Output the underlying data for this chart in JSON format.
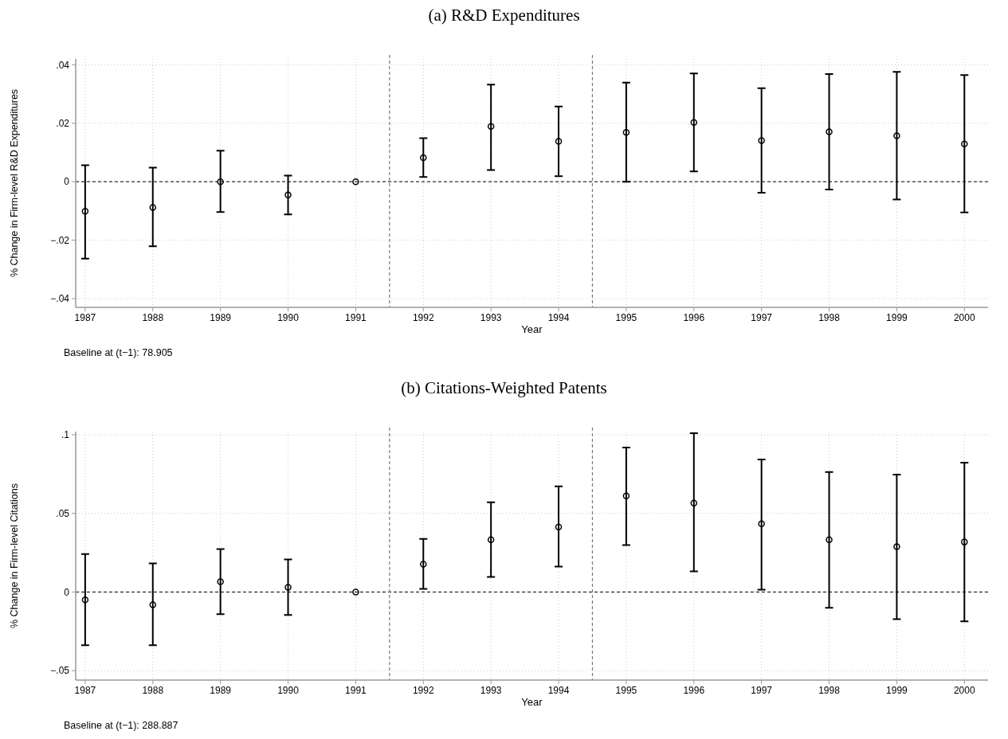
{
  "chart_data": [
    {
      "type": "scatter",
      "title": "(a) R&D Expenditures",
      "xlabel": "Year",
      "ylabel": "% Change in Firm-level R&D Expenditures",
      "annotations": [
        "Baseline at (t−1): 78.905"
      ],
      "x": [
        1987,
        1988,
        1989,
        1990,
        1991,
        1992,
        1993,
        1994,
        1995,
        1996,
        1997,
        1998,
        1999,
        2000
      ],
      "values": [
        -0.0101,
        -0.0088,
        0,
        -0.0045,
        0,
        0.0082,
        0.0189,
        0.0138,
        0.0169,
        0.0203,
        0.0141,
        0.0171,
        0.0157,
        0.0129
      ],
      "errors": [
        [
          -0.0263,
          0.0056
        ],
        [
          -0.0221,
          0.0048
        ],
        [
          -0.0104,
          0.0106
        ],
        [
          -0.0112,
          0.0021
        ],
        null,
        [
          0.0016,
          0.0149
        ],
        [
          0.004,
          0.0332
        ],
        [
          0.0019,
          0.0257
        ],
        [
          0,
          0.0339
        ],
        [
          0.0035,
          0.037
        ],
        [
          -0.0038,
          0.032
        ],
        [
          -0.0027,
          0.0368
        ],
        [
          -0.0061,
          0.0376
        ],
        [
          -0.0105,
          0.0365
        ]
      ],
      "color": "#000000",
      "marker": "circle",
      "xlim": [
        1986.86,
        2000.35
      ],
      "xticks": [
        1987,
        1988,
        1989,
        1990,
        1991,
        1992,
        1993,
        1994,
        1995,
        1996,
        1997,
        1998,
        1999,
        2000
      ],
      "ylim": [
        -0.043,
        0.042
      ],
      "yticks": [
        {
          "value": -0.04,
          "label": "−.04"
        },
        {
          "value": -0.02,
          "label": "−.02"
        },
        0,
        {
          "value": 0.02,
          "label": ".02"
        },
        {
          "value": 0.04,
          "label": ".04"
        }
      ],
      "grid": true,
      "ref_lines": [
        {
          "axis": "y",
          "value": 0,
          "color": "#000000",
          "line_style": "dashed"
        },
        {
          "axis": "x",
          "value": 1991.5,
          "color": "#777777",
          "line_style": "dashed"
        },
        {
          "axis": "x",
          "value": 1994.5,
          "color": "#777777",
          "line_style": "dashed"
        }
      ]
    },
    {
      "type": "scatter",
      "title": "(b) Citations-Weighted Patents",
      "xlabel": "Year",
      "ylabel": "% Change in Firm-level Citations",
      "annotations": [
        "Baseline at (t−1): 288.887"
      ],
      "x": [
        1987,
        1988,
        1989,
        1990,
        1991,
        1992,
        1993,
        1994,
        1995,
        1996,
        1997,
        1998,
        1999,
        2000
      ],
      "values": [
        -0.005,
        -0.0081,
        0.0066,
        0.003,
        0,
        0.0177,
        0.0333,
        0.0414,
        0.0611,
        0.0566,
        0.0434,
        0.0333,
        0.0288,
        0.0318
      ],
      "errors": [
        [
          -0.0338,
          0.0242
        ],
        [
          -0.0338,
          0.0182
        ],
        [
          -0.0141,
          0.0273
        ],
        [
          -0.0146,
          0.0207
        ],
        null,
        [
          0.002,
          0.0338
        ],
        [
          0.0096,
          0.057
        ],
        [
          0.0162,
          0.0672
        ],
        [
          0.0298,
          0.0919
        ],
        [
          0.0131,
          0.101
        ],
        [
          0.0015,
          0.0843
        ],
        [
          -0.0101,
          0.0763
        ],
        [
          -0.0172,
          0.0747
        ],
        [
          -0.0187,
          0.0823
        ]
      ],
      "color": "#000000",
      "marker": "circle",
      "xlim": [
        1986.86,
        2000.35
      ],
      "xticks": [
        1987,
        1988,
        1989,
        1990,
        1991,
        1992,
        1993,
        1994,
        1995,
        1996,
        1997,
        1998,
        1999,
        2000
      ],
      "ylim": [
        -0.056,
        0.102
      ],
      "yticks": [
        {
          "value": -0.05,
          "label": "−.05"
        },
        0,
        {
          "value": 0.05,
          "label": ".05"
        },
        {
          "value": 0.1,
          "label": ".1"
        }
      ],
      "grid": true,
      "ref_lines": [
        {
          "axis": "y",
          "value": 0,
          "color": "#000000",
          "line_style": "dashed"
        },
        {
          "axis": "x",
          "value": 1991.5,
          "color": "#777777",
          "line_style": "dashed"
        },
        {
          "axis": "x",
          "value": 1994.5,
          "color": "#777777",
          "line_style": "dashed"
        }
      ]
    }
  ]
}
